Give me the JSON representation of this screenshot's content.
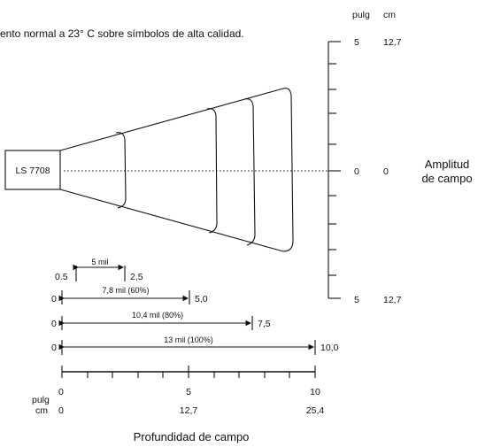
{
  "caption": "ento normal a 23° C sobre símbolos de alta calidad.",
  "scanner_label": "LS 7708",
  "width_axis": {
    "unit_in": "pulg",
    "unit_cm": "cm",
    "top_in": "5",
    "top_cm": "12,7",
    "mid_in": "0",
    "mid_cm": "0",
    "bottom_in": "5",
    "bottom_cm": "12,7",
    "label_line1": "Amplitud",
    "label_line2": "de campo"
  },
  "ranges": [
    {
      "label": "5 mil",
      "start": "0.5",
      "end": "2,5"
    },
    {
      "label": "7,8 mil (60%)",
      "start": "0",
      "end": "5,0"
    },
    {
      "label": "10,4 mil (80%)",
      "start": "0",
      "end": "7,5"
    },
    {
      "label": "13 mil (100%)",
      "start": "0",
      "end": "10,0"
    }
  ],
  "depth_axis": {
    "unit_in": "pulg",
    "unit_cm": "cm",
    "ticks_in": [
      "0",
      "5",
      "10"
    ],
    "ticks_cm": [
      "0",
      "12,7",
      "25,4"
    ],
    "label": "Profundidad de campo"
  }
}
